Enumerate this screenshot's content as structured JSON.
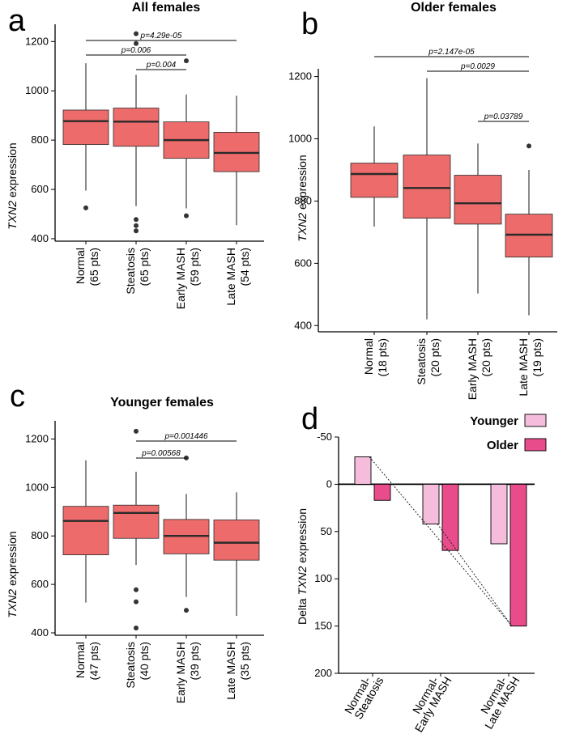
{
  "chart_data": [
    {
      "panel": "a",
      "type": "box",
      "title": "All females",
      "ylabel_prefix": "",
      "ylabel_italic": "TXN2",
      "ylabel_suffix": " expression",
      "ylim": [
        390,
        1270
      ],
      "yticks": [
        400,
        600,
        800,
        1000,
        1200
      ],
      "categories": [
        "Normal",
        "Steatosis",
        "Early MASH",
        "Late MASH"
      ],
      "counts": [
        "(65 pts)",
        "(65 pts)",
        "(59 pts)",
        "(54 pts)"
      ],
      "boxes": [
        {
          "whisker_low": 595,
          "q1": 782,
          "median": 877,
          "q3": 922,
          "whisker_high": 1112,
          "outliers": [
            525
          ]
        },
        {
          "whisker_low": 532,
          "q1": 775,
          "median": 875,
          "q3": 930,
          "whisker_high": 1065,
          "outliers": [
            1232,
            1192,
            478,
            453,
            432
          ]
        },
        {
          "whisker_low": 523,
          "q1": 726,
          "median": 800,
          "q3": 874,
          "whisker_high": 985,
          "outliers": [
            1122,
            493
          ]
        },
        {
          "whisker_low": 455,
          "q1": 672,
          "median": 748,
          "q3": 832,
          "whisker_high": 980,
          "outliers": []
        }
      ],
      "comparisons": [
        {
          "from": 0,
          "to": 3,
          "label": "p=4.29e-05"
        },
        {
          "from": 0,
          "to": 2,
          "label": "p=0.006"
        },
        {
          "from": 1,
          "to": 2,
          "label": "p=0.004"
        }
      ]
    },
    {
      "panel": "b",
      "type": "box",
      "title": "Older females",
      "ylabel_prefix": "",
      "ylabel_italic": "TXN2",
      "ylabel_suffix": " expression",
      "ylim": [
        380,
        1225
      ],
      "yticks": [
        400,
        600,
        800,
        1000,
        1200
      ],
      "categories": [
        "Normal",
        "Steatosis",
        "Early MASH",
        "Late MASH"
      ],
      "counts": [
        "(18 pts)",
        "(20 pts)",
        "(20 pts)",
        "(19 pts)"
      ],
      "boxes": [
        {
          "whisker_low": 718,
          "q1": 812,
          "median": 887,
          "q3": 922,
          "whisker_high": 1040,
          "outliers": []
        },
        {
          "whisker_low": 420,
          "q1": 745,
          "median": 842,
          "q3": 948,
          "whisker_high": 1195,
          "outliers": []
        },
        {
          "whisker_low": 503,
          "q1": 726,
          "median": 793,
          "q3": 883,
          "whisker_high": 985,
          "outliers": []
        },
        {
          "whisker_low": 433,
          "q1": 620,
          "median": 692,
          "q3": 758,
          "whisker_high": 900,
          "outliers": [
            977
          ]
        }
      ],
      "comparisons": [
        {
          "from": 0,
          "to": 3,
          "label": "p=2.147e-05"
        },
        {
          "from": 1,
          "to": 3,
          "label": "p=0.0029"
        },
        {
          "from": 2,
          "to": 3,
          "label": "p=0.03789"
        }
      ]
    },
    {
      "panel": "c",
      "type": "box",
      "title": "Younger females",
      "ylabel_prefix": "",
      "ylabel_italic": "TXN2",
      "ylabel_suffix": " expression",
      "ylim": [
        390,
        1275
      ],
      "yticks": [
        400,
        600,
        800,
        1000,
        1200
      ],
      "categories": [
        "Normal",
        "Steatosis",
        "Early MASH",
        "Late MASH"
      ],
      "counts": [
        "(47 pts)",
        "(40 pts)",
        "(39 pts)",
        "(35 pts)"
      ],
      "boxes": [
        {
          "whisker_low": 525,
          "q1": 722,
          "median": 862,
          "q3": 922,
          "whisker_high": 1112,
          "outliers": []
        },
        {
          "whisker_low": 680,
          "q1": 790,
          "median": 895,
          "q3": 927,
          "whisker_high": 1065,
          "outliers": [
            1232,
            578,
            528,
            420
          ]
        },
        {
          "whisker_low": 548,
          "q1": 726,
          "median": 800,
          "q3": 868,
          "whisker_high": 973,
          "outliers": [
            1122,
            493
          ]
        },
        {
          "whisker_low": 470,
          "q1": 700,
          "median": 772,
          "q3": 866,
          "whisker_high": 980,
          "outliers": []
        }
      ],
      "comparisons": [
        {
          "from": 1,
          "to": 3,
          "label": "p=0.001446"
        },
        {
          "from": 1,
          "to": 2,
          "label": "p=0.00568"
        }
      ]
    },
    {
      "panel": "d",
      "type": "bar",
      "title": "",
      "ylabel_prefix": "Delta ",
      "ylabel_italic": "TXN2",
      "ylabel_suffix": " expression",
      "ylim": [
        -50,
        200
      ],
      "inverted_y": true,
      "yticks": [
        -50,
        0,
        50,
        100,
        150,
        200
      ],
      "categories": [
        "Normal-\nSteatosis",
        "Normal-\nEarly MASH",
        "Normal-\nLate MASH"
      ],
      "series": [
        {
          "name": "Younger",
          "color": "#f5bddb",
          "values": [
            -29,
            42,
            63
          ]
        },
        {
          "name": "Older",
          "color": "#e84c8b",
          "values": [
            17,
            70,
            150
          ]
        }
      ],
      "connectors": [
        {
          "series_from": "Younger",
          "cat_from": 0,
          "series_to": "Older",
          "cat_to": 2
        },
        {
          "series_from": "Younger",
          "cat_from": 1,
          "series_to": "Older",
          "cat_to": 2
        }
      ]
    }
  ]
}
